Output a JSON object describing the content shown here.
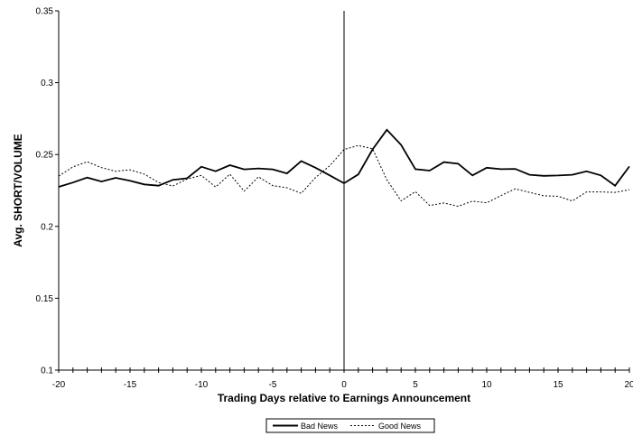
{
  "chart_data": {
    "type": "line",
    "xlabel": "Trading Days relative to Earnings Announcement",
    "ylabel": "Avg. SHORT/VOLUME",
    "xlim": [
      -20,
      20
    ],
    "ylim": [
      0.1,
      0.35
    ],
    "x_ticks": [
      -20,
      -15,
      -10,
      -5,
      0,
      5,
      10,
      15,
      20
    ],
    "x_tick_labels": [
      "-20",
      "-15",
      "-10",
      "-5",
      "0",
      "5",
      "10",
      "15",
      "20"
    ],
    "y_ticks": [
      0.1,
      0.15,
      0.2,
      0.25,
      0.3,
      0.35
    ],
    "y_tick_labels": [
      "0.1",
      "0.15",
      "0.2",
      "0.25",
      "0.3",
      "0.35"
    ],
    "vertical_reference_line_x": 0,
    "grid": false,
    "legend_position": "bottom-center",
    "x": [
      -20,
      -19,
      -18,
      -17,
      -16,
      -15,
      -14,
      -13,
      -12,
      -11,
      -10,
      -9,
      -8,
      -7,
      -6,
      -5,
      -4,
      -3,
      -2,
      -1,
      0,
      1,
      2,
      3,
      4,
      5,
      6,
      7,
      8,
      9,
      10,
      11,
      12,
      13,
      14,
      15,
      16,
      17,
      18,
      19,
      20
    ],
    "series": [
      {
        "name": "Bad News",
        "style": "solid",
        "color": "#000000",
        "values": [
          0.2275,
          0.2305,
          0.234,
          0.2312,
          0.2338,
          0.2318,
          0.2292,
          0.2283,
          0.2324,
          0.2335,
          0.2415,
          0.2384,
          0.2426,
          0.2397,
          0.2403,
          0.2397,
          0.2369,
          0.2455,
          0.2408,
          0.2355,
          0.23,
          0.2362,
          0.2536,
          0.2672,
          0.2567,
          0.2398,
          0.2388,
          0.2447,
          0.2436,
          0.2355,
          0.2408,
          0.2398,
          0.24,
          0.2359,
          0.2352,
          0.2354,
          0.2359,
          0.2383,
          0.2355,
          0.2283,
          0.2417
        ]
      },
      {
        "name": "Good News",
        "style": "dashed",
        "color": "#000000",
        "values": [
          0.235,
          0.2414,
          0.245,
          0.2409,
          0.2384,
          0.2394,
          0.2364,
          0.2305,
          0.2281,
          0.233,
          0.2355,
          0.2274,
          0.2364,
          0.2245,
          0.2345,
          0.2284,
          0.2269,
          0.223,
          0.234,
          0.2422,
          0.2535,
          0.2563,
          0.254,
          0.2324,
          0.2178,
          0.2242,
          0.2146,
          0.2163,
          0.214,
          0.2176,
          0.2164,
          0.2214,
          0.2261,
          0.2237,
          0.2213,
          0.221,
          0.2177,
          0.224,
          0.224,
          0.2237,
          0.2255
        ]
      }
    ]
  }
}
